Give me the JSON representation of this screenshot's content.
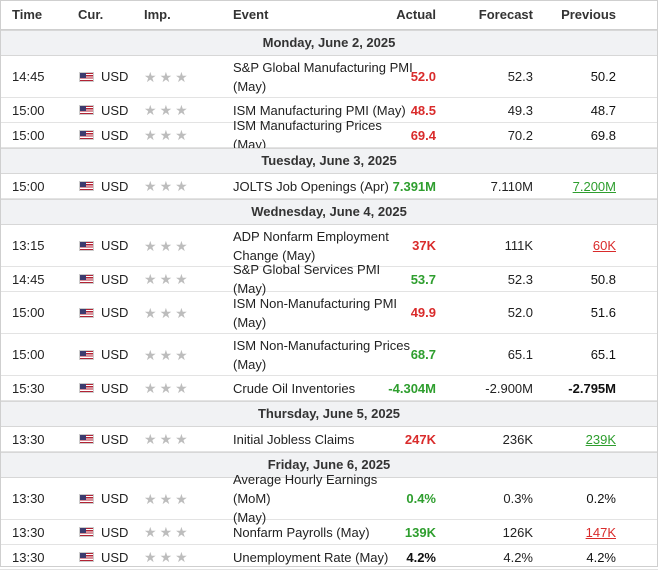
{
  "headers": {
    "time": "Time",
    "currency": "Cur.",
    "importance": "Imp.",
    "event": "Event",
    "actual": "Actual",
    "forecast": "Forecast",
    "previous": "Previous"
  },
  "icons": {
    "flag": "us-flag-icon",
    "star": "star-icon"
  },
  "colors": {
    "negative": "#d92b2b",
    "positive": "#2e9e2e",
    "neutral": "#111111",
    "star": "#bdbdbd",
    "day_bg": "#f1f2f4"
  },
  "groups": [
    {
      "day": "Monday, June 2, 2025",
      "rows": [
        {
          "time": "14:45",
          "currency": "USD",
          "event": [
            "S&P Global Manufacturing PMI",
            "(May)"
          ],
          "actual": "52.0",
          "actual_color": "red",
          "forecast": "52.3",
          "previous": "50.2",
          "previous_style": "plain"
        },
        {
          "time": "15:00",
          "currency": "USD",
          "event": [
            "ISM Manufacturing PMI (May)"
          ],
          "actual": "48.5",
          "actual_color": "red",
          "forecast": "49.3",
          "previous": "48.7",
          "previous_style": "plain"
        },
        {
          "time": "15:00",
          "currency": "USD",
          "event": [
            "ISM Manufacturing Prices (May)"
          ],
          "actual": "69.4",
          "actual_color": "red",
          "forecast": "70.2",
          "previous": "69.8",
          "previous_style": "plain"
        }
      ]
    },
    {
      "day": "Tuesday, June 3, 2025",
      "rows": [
        {
          "time": "15:00",
          "currency": "USD",
          "event": [
            "JOLTS Job Openings (Apr)"
          ],
          "actual": "7.391M",
          "actual_color": "green",
          "forecast": "7.110M",
          "previous": "7.200M",
          "previous_style": "green"
        }
      ]
    },
    {
      "day": "Wednesday, June 4, 2025",
      "rows": [
        {
          "time": "13:15",
          "currency": "USD",
          "event": [
            "ADP Nonfarm Employment",
            "Change (May)"
          ],
          "actual": "37K",
          "actual_color": "red",
          "forecast": "111K",
          "previous": "60K",
          "previous_style": "red"
        },
        {
          "time": "14:45",
          "currency": "USD",
          "event": [
            "S&P Global Services PMI (May)"
          ],
          "actual": "53.7",
          "actual_color": "green",
          "forecast": "52.3",
          "previous": "50.8",
          "previous_style": "plain"
        },
        {
          "time": "15:00",
          "currency": "USD",
          "event": [
            "ISM Non-Manufacturing PMI",
            "(May)"
          ],
          "actual": "49.9",
          "actual_color": "red",
          "forecast": "52.0",
          "previous": "51.6",
          "previous_style": "plain"
        },
        {
          "time": "15:00",
          "currency": "USD",
          "event": [
            "ISM Non-Manufacturing Prices",
            "(May)"
          ],
          "actual": "68.7",
          "actual_color": "green",
          "forecast": "65.1",
          "previous": "65.1",
          "previous_style": "plain"
        },
        {
          "time": "15:30",
          "currency": "USD",
          "event": [
            "Crude Oil Inventories"
          ],
          "actual": "-4.304M",
          "actual_color": "green",
          "forecast": "-2.900M",
          "previous": "-2.795M",
          "previous_style": "bold"
        }
      ]
    },
    {
      "day": "Thursday, June 5, 2025",
      "rows": [
        {
          "time": "13:30",
          "currency": "USD",
          "event": [
            "Initial Jobless Claims"
          ],
          "actual": "247K",
          "actual_color": "red",
          "forecast": "236K",
          "previous": "239K",
          "previous_style": "green"
        }
      ]
    },
    {
      "day": "Friday, June 6, 2025",
      "rows": [
        {
          "time": "13:30",
          "currency": "USD",
          "event": [
            "Average Hourly Earnings (MoM)",
            "(May)"
          ],
          "actual": "0.4%",
          "actual_color": "green",
          "forecast": "0.3%",
          "previous": "0.2%",
          "previous_style": "plain"
        },
        {
          "time": "13:30",
          "currency": "USD",
          "event": [
            "Nonfarm Payrolls (May)"
          ],
          "actual": "139K",
          "actual_color": "green",
          "forecast": "126K",
          "previous": "147K",
          "previous_style": "red"
        },
        {
          "time": "13:30",
          "currency": "USD",
          "event": [
            "Unemployment Rate (May)"
          ],
          "actual": "4.2%",
          "actual_color": "black",
          "forecast": "4.2%",
          "previous": "4.2%",
          "previous_style": "plain"
        }
      ]
    }
  ]
}
